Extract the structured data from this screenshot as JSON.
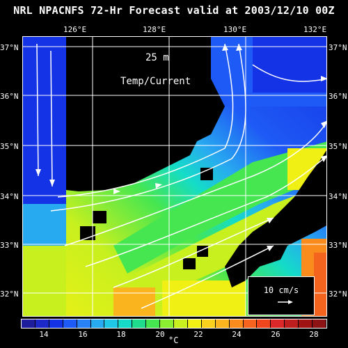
{
  "title": "NRL NPACNFS 72-Hr Forecast valid at 2003/12/10 00Z",
  "longitudes": [
    "126°E",
    "128°E",
    "130°E",
    "132°E"
  ],
  "latitudes": [
    "37°N",
    "36°N",
    "35°N",
    "34°N",
    "33°N",
    "32°N"
  ],
  "depth_label": "25 m",
  "field_label": "Temp/Current",
  "vector_scale_label": "10 cm/s",
  "colorbar_ticks": [
    "14",
    "16",
    "18",
    "20",
    "22",
    "24",
    "26",
    "28"
  ],
  "colorbar_unit": "°C",
  "colors": {
    "land": "#000000",
    "grid": "#ffffff",
    "vectors": "#ffffff",
    "colorbar": [
      "#1e1e9c",
      "#1c28c8",
      "#1432e6",
      "#1e5af5",
      "#2882f5",
      "#28aaf0",
      "#1ec8e6",
      "#14dcc8",
      "#1edc8c",
      "#46e650",
      "#8cf032",
      "#c8f01e",
      "#f0f014",
      "#fad21e",
      "#fab41e",
      "#fa8c1e",
      "#f5641e",
      "#f0461e",
      "#dc2828",
      "#be1e1e",
      "#a01414",
      "#8c1414"
    ]
  }
}
